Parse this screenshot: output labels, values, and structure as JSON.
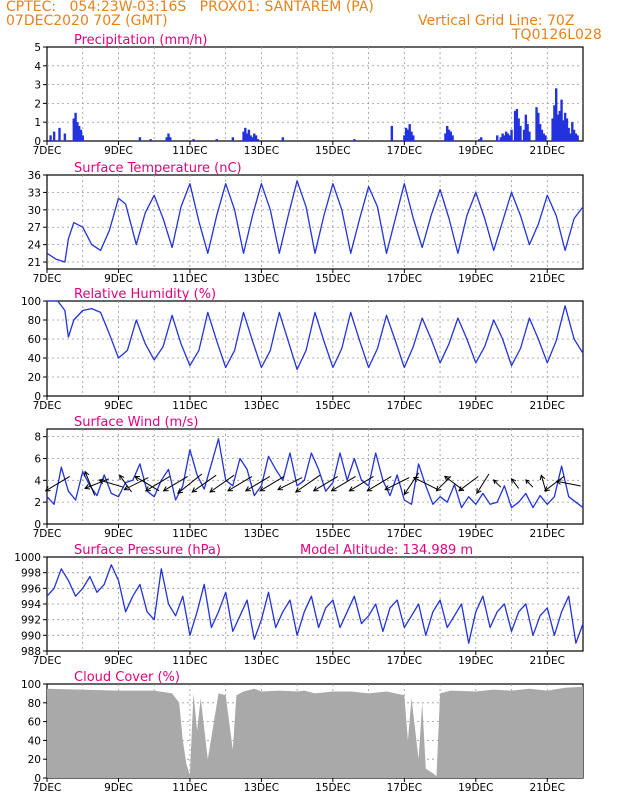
{
  "header": {
    "line1": "CPTEC:   054:23W-03:16S   PROX01: SANTAREM (PA)",
    "line2": "07DEC2020 70Z (GMT)",
    "grid_note": "Vertical Grid Line: 70Z",
    "code": "TQ0126L028"
  },
  "colors": {
    "header": "#e8821a",
    "title": "#e6007e",
    "line": "#2233dd",
    "cloud": "#a9a9a9",
    "arrow": "#000000"
  },
  "chart_data": [
    {
      "id": "precip",
      "type": "bar",
      "title": "Precipitation (mm/h)",
      "xlim": [
        7,
        22
      ],
      "ylim": [
        0,
        5
      ],
      "yticks": [
        "0",
        "1",
        "2",
        "3",
        "4",
        "5"
      ],
      "xticks": [
        "7DEC",
        "9DEC",
        "11DEC",
        "13DEC",
        "15DEC",
        "17DEC",
        "19DEC",
        "21DEC"
      ],
      "x": [
        7.1,
        7.2,
        7.35,
        7.5,
        7.75,
        7.8,
        7.85,
        7.9,
        7.95,
        8.0,
        9.6,
        9.9,
        10.35,
        10.4,
        10.45,
        11.1,
        11.75,
        12.2,
        12.5,
        12.55,
        12.6,
        12.65,
        12.7,
        12.75,
        12.8,
        12.85,
        12.9,
        13.6,
        15.6,
        16.65,
        17.0,
        17.05,
        17.1,
        17.15,
        17.2,
        17.25,
        18.15,
        18.2,
        18.25,
        18.3,
        18.35,
        19.1,
        19.15,
        19.6,
        19.7,
        19.75,
        19.8,
        19.85,
        19.9,
        19.95,
        20.0,
        20.1,
        20.15,
        20.2,
        20.25,
        20.35,
        20.4,
        20.45,
        20.5,
        20.7,
        20.75,
        20.8,
        20.85,
        20.9,
        20.95,
        21.15,
        21.2,
        21.25,
        21.3,
        21.35,
        21.4,
        21.45,
        21.5,
        21.55,
        21.6,
        21.65,
        21.7,
        21.75,
        21.8,
        21.85
      ],
      "values": [
        0.3,
        0.5,
        0.7,
        0.4,
        1.2,
        1.5,
        1.0,
        0.8,
        0.6,
        0.3,
        0.2,
        0.1,
        0.2,
        0.4,
        0.2,
        0.1,
        0.1,
        0.2,
        0.5,
        0.7,
        0.4,
        0.6,
        0.3,
        0.2,
        0.4,
        0.3,
        0.1,
        0.2,
        0.1,
        0.8,
        0.3,
        0.7,
        0.6,
        0.9,
        0.5,
        0.3,
        0.4,
        0.8,
        0.6,
        0.5,
        0.3,
        0.1,
        0.2,
        0.3,
        0.2,
        0.4,
        0.3,
        0.5,
        0.4,
        0.3,
        0.6,
        1.6,
        1.7,
        1.2,
        0.8,
        0.6,
        1.4,
        0.9,
        0.5,
        1.8,
        1.5,
        0.9,
        0.6,
        0.4,
        0.3,
        1.2,
        1.9,
        2.8,
        1.4,
        1.6,
        2.2,
        1.1,
        1.5,
        1.2,
        0.7,
        0.4,
        1.0,
        0.6,
        0.4,
        0.3
      ]
    },
    {
      "id": "temp",
      "type": "line",
      "title": "Surface Temperature (nC)",
      "xlim": [
        7,
        22
      ],
      "ylim": [
        19.8,
        36
      ],
      "yticks": [
        "21",
        "24",
        "27",
        "30",
        "33",
        "36"
      ],
      "xticks": [
        "7DEC",
        "9DEC",
        "11DEC",
        "13DEC",
        "15DEC",
        "17DEC",
        "19DEC",
        "21DEC"
      ],
      "x": [
        7.0,
        7.25,
        7.5,
        7.6,
        7.75,
        8.0,
        8.25,
        8.5,
        8.75,
        9.0,
        9.2,
        9.5,
        9.75,
        10.0,
        10.25,
        10.5,
        10.75,
        11.0,
        11.25,
        11.5,
        11.75,
        12.0,
        12.25,
        12.5,
        12.75,
        13.0,
        13.25,
        13.5,
        13.75,
        14.0,
        14.25,
        14.5,
        14.75,
        15.0,
        15.25,
        15.5,
        15.75,
        16.0,
        16.25,
        16.5,
        16.75,
        17.0,
        17.25,
        17.5,
        17.75,
        18.0,
        18.25,
        18.5,
        18.75,
        19.0,
        19.25,
        19.5,
        19.75,
        20.0,
        20.25,
        20.5,
        20.75,
        21.0,
        21.25,
        21.5,
        21.75,
        22.0
      ],
      "values": [
        22.5,
        21.5,
        21.0,
        25.0,
        27.8,
        27.0,
        24.0,
        23.0,
        26.5,
        32.0,
        31.0,
        24.0,
        29.5,
        32.5,
        28.5,
        23.5,
        30.5,
        34.5,
        28.0,
        22.5,
        29.0,
        34.5,
        30.0,
        22.5,
        29.0,
        34.5,
        30.0,
        22.5,
        29.0,
        35.0,
        30.5,
        22.5,
        29.0,
        34.5,
        30.0,
        22.5,
        28.5,
        34.0,
        30.5,
        22.5,
        28.5,
        34.5,
        28.5,
        23.5,
        29.0,
        33.5,
        28.5,
        22.5,
        29.0,
        33.0,
        28.5,
        23.0,
        28.0,
        33.0,
        29.0,
        24.0,
        27.5,
        32.5,
        29.0,
        23.0,
        28.5,
        30.5
      ]
    },
    {
      "id": "rh",
      "type": "line",
      "title": "Relative Humidity (%)",
      "xlim": [
        7,
        22
      ],
      "ylim": [
        0,
        100
      ],
      "yticks": [
        "0",
        "20",
        "40",
        "60",
        "80",
        "100"
      ],
      "xticks": [
        "7DEC",
        "9DEC",
        "11DEC",
        "13DEC",
        "15DEC",
        "17DEC",
        "19DEC",
        "21DEC"
      ],
      "x": [
        7.0,
        7.3,
        7.5,
        7.6,
        7.75,
        8.0,
        8.25,
        8.5,
        8.75,
        9.0,
        9.25,
        9.5,
        9.75,
        10.0,
        10.25,
        10.5,
        10.75,
        11.0,
        11.25,
        11.5,
        11.75,
        12.0,
        12.25,
        12.5,
        12.75,
        13.0,
        13.25,
        13.5,
        13.75,
        14.0,
        14.25,
        14.5,
        14.75,
        15.0,
        15.25,
        15.5,
        15.75,
        16.0,
        16.25,
        16.5,
        16.75,
        17.0,
        17.25,
        17.5,
        17.75,
        18.0,
        18.25,
        18.5,
        18.75,
        19.0,
        19.25,
        19.5,
        19.75,
        20.0,
        20.25,
        20.5,
        20.75,
        21.0,
        21.25,
        21.5,
        21.75,
        22.0
      ],
      "values": [
        100,
        100,
        90,
        62,
        80,
        90,
        92,
        88,
        65,
        40,
        48,
        80,
        55,
        38,
        52,
        85,
        55,
        32,
        48,
        88,
        58,
        30,
        48,
        88,
        58,
        30,
        48,
        88,
        58,
        28,
        48,
        88,
        58,
        30,
        50,
        88,
        58,
        30,
        50,
        85,
        58,
        30,
        52,
        82,
        60,
        35,
        55,
        82,
        60,
        35,
        52,
        80,
        60,
        32,
        50,
        82,
        60,
        35,
        58,
        95,
        60,
        45
      ]
    },
    {
      "id": "wind",
      "type": "line",
      "title": "Surface Wind (m/s)",
      "xlim": [
        7,
        22
      ],
      "ylim": [
        0,
        8.7
      ],
      "yticks": [
        "0",
        "2",
        "4",
        "6",
        "8"
      ],
      "xticks": [
        "7DEC",
        "9DEC",
        "11DEC",
        "13DEC",
        "15DEC",
        "17DEC",
        "19DEC",
        "21DEC"
      ],
      "x": [
        7.0,
        7.2,
        7.4,
        7.6,
        7.8,
        8.0,
        8.2,
        8.4,
        8.6,
        8.8,
        9.0,
        9.2,
        9.4,
        9.6,
        9.8,
        10.0,
        10.2,
        10.4,
        10.6,
        10.8,
        11.0,
        11.2,
        11.4,
        11.6,
        11.8,
        12.0,
        12.2,
        12.4,
        12.6,
        12.8,
        13.0,
        13.2,
        13.4,
        13.6,
        13.8,
        14.0,
        14.2,
        14.4,
        14.6,
        14.8,
        15.0,
        15.2,
        15.4,
        15.6,
        15.8,
        16.0,
        16.2,
        16.4,
        16.6,
        16.8,
        17.0,
        17.2,
        17.4,
        17.6,
        17.8,
        18.0,
        18.2,
        18.4,
        18.6,
        18.8,
        19.0,
        19.2,
        19.4,
        19.6,
        19.8,
        20.0,
        20.2,
        20.4,
        20.6,
        20.8,
        21.0,
        21.2,
        21.4,
        21.6,
        21.8,
        22.0
      ],
      "values": [
        2.5,
        1.8,
        5.2,
        3.0,
        2.2,
        4.8,
        3.5,
        2.6,
        4.5,
        2.8,
        2.5,
        3.8,
        4.0,
        5.5,
        3.0,
        2.5,
        4.0,
        5.0,
        2.2,
        3.5,
        6.8,
        4.5,
        3.2,
        5.5,
        7.8,
        4.0,
        3.5,
        6.0,
        5.0,
        2.6,
        3.5,
        6.2,
        5.0,
        4.0,
        6.5,
        3.5,
        4.0,
        6.5,
        5.0,
        3.0,
        3.8,
        6.5,
        4.0,
        6.0,
        4.0,
        3.5,
        6.5,
        4.0,
        2.6,
        4.5,
        2.2,
        1.8,
        5.5,
        3.5,
        1.8,
        2.5,
        2.0,
        3.6,
        1.5,
        2.5,
        1.8,
        2.8,
        1.8,
        2.0,
        3.5,
        1.5,
        2.0,
        2.8,
        1.5,
        2.6,
        1.8,
        2.5,
        5.3,
        2.5,
        2.0,
        1.5
      ]
    },
    {
      "id": "pres",
      "type": "line",
      "title": "Surface Pressure (hPa)",
      "annotation": "Model Altitude: 134.989 m",
      "xlim": [
        7,
        22
      ],
      "ylim": [
        988,
        1000
      ],
      "yticks": [
        "988",
        "990",
        "992",
        "994",
        "996",
        "998",
        "1000"
      ],
      "xticks": [
        "7DEC",
        "9DEC",
        "11DEC",
        "13DEC",
        "15DEC",
        "17DEC",
        "19DEC",
        "21DEC"
      ],
      "x": [
        7.0,
        7.2,
        7.4,
        7.6,
        7.8,
        8.0,
        8.2,
        8.4,
        8.6,
        8.8,
        9.0,
        9.2,
        9.4,
        9.6,
        9.8,
        10.0,
        10.2,
        10.4,
        10.6,
        10.8,
        11.0,
        11.2,
        11.4,
        11.6,
        11.8,
        12.0,
        12.2,
        12.4,
        12.6,
        12.8,
        13.0,
        13.2,
        13.4,
        13.6,
        13.8,
        14.0,
        14.2,
        14.4,
        14.6,
        14.8,
        15.0,
        15.2,
        15.4,
        15.6,
        15.8,
        16.0,
        16.2,
        16.4,
        16.6,
        16.8,
        17.0,
        17.2,
        17.4,
        17.6,
        17.8,
        18.0,
        18.2,
        18.4,
        18.6,
        18.8,
        19.0,
        19.2,
        19.4,
        19.6,
        19.8,
        20.0,
        20.2,
        20.4,
        20.6,
        20.8,
        21.0,
        21.2,
        21.4,
        21.6,
        21.8,
        22.0
      ],
      "values": [
        995.0,
        996.0,
        998.5,
        997.0,
        995.0,
        996.0,
        997.5,
        995.5,
        996.5,
        999.0,
        997.0,
        993.0,
        995.0,
        996.5,
        993.0,
        992.0,
        998.5,
        994.0,
        992.5,
        995.0,
        990.0,
        993.0,
        996.5,
        991.0,
        993.0,
        995.5,
        990.5,
        992.5,
        994.5,
        989.5,
        992.0,
        995.5,
        991.0,
        993.0,
        994.5,
        990.0,
        993.0,
        995.0,
        991.0,
        993.5,
        994.5,
        991.0,
        993.0,
        995.0,
        991.5,
        992.5,
        994.0,
        990.5,
        993.5,
        994.5,
        991.0,
        992.5,
        994.0,
        990.0,
        993.0,
        994.5,
        991.0,
        992.5,
        994.0,
        989.0,
        993.0,
        995.0,
        991.0,
        993.0,
        994.0,
        990.5,
        993.0,
        994.0,
        990.0,
        992.5,
        993.5,
        990.0,
        993.0,
        995.0,
        989.0,
        991.5
      ]
    },
    {
      "id": "cloud",
      "type": "area",
      "title": "Cloud Cover (%)",
      "xlim": [
        7,
        22
      ],
      "ylim": [
        0,
        100
      ],
      "yticks": [
        "0",
        "20",
        "40",
        "60",
        "80",
        "100"
      ],
      "xticks": [
        "7DEC",
        "9DEC",
        "11DEC",
        "13DEC",
        "15DEC",
        "17DEC",
        "19DEC",
        "21DEC"
      ],
      "x": [
        7.0,
        9.0,
        10.0,
        10.5,
        10.7,
        10.8,
        10.9,
        11.0,
        11.1,
        11.2,
        11.3,
        11.5,
        11.8,
        12.0,
        12.2,
        12.3,
        12.5,
        12.8,
        13.0,
        13.5,
        14.0,
        14.2,
        14.5,
        15.0,
        15.5,
        16.0,
        16.5,
        17.0,
        17.1,
        17.2,
        17.4,
        17.5,
        17.6,
        17.8,
        17.9,
        18.0,
        18.3,
        19.0,
        19.5,
        20.0,
        20.5,
        21.0,
        21.5,
        22.0
      ],
      "values": [
        95,
        93,
        93,
        90,
        80,
        40,
        15,
        3,
        90,
        50,
        85,
        20,
        90,
        88,
        30,
        88,
        92,
        95,
        92,
        93,
        92,
        93,
        90,
        92,
        92,
        90,
        92,
        88,
        40,
        85,
        20,
        80,
        10,
        5,
        2,
        90,
        93,
        92,
        94,
        93,
        95,
        93,
        96,
        97
      ]
    }
  ],
  "wind_arrows": [
    {
      "x": 7.3,
      "u": -1.0,
      "v": -0.6
    },
    {
      "x": 8.2,
      "u": -0.4,
      "v": 1.0
    },
    {
      "x": 8.4,
      "u": -1.0,
      "v": -0.4
    },
    {
      "x": 8.8,
      "u": -1.0,
      "v": 0.3
    },
    {
      "x": 9.2,
      "u": -0.5,
      "v": 0.7
    },
    {
      "x": 9.5,
      "u": -1.0,
      "v": -0.5
    },
    {
      "x": 9.8,
      "u": -1.0,
      "v": 0.6
    },
    {
      "x": 10.1,
      "u": -1.0,
      "v": -0.6
    },
    {
      "x": 10.6,
      "u": -1.0,
      "v": -0.6
    },
    {
      "x": 11.0,
      "u": -1.0,
      "v": -0.8
    },
    {
      "x": 11.4,
      "u": -1.0,
      "v": -0.7
    },
    {
      "x": 11.9,
      "u": -1.0,
      "v": -0.7
    },
    {
      "x": 12.4,
      "u": -1.0,
      "v": -0.6
    },
    {
      "x": 12.9,
      "u": -1.0,
      "v": -0.6
    },
    {
      "x": 13.3,
      "u": -1.0,
      "v": -0.6
    },
    {
      "x": 13.8,
      "u": -1.0,
      "v": -0.5
    },
    {
      "x": 14.3,
      "u": -1.0,
      "v": -0.7
    },
    {
      "x": 14.8,
      "u": -1.0,
      "v": -0.6
    },
    {
      "x": 15.3,
      "u": -1.0,
      "v": -0.6
    },
    {
      "x": 15.8,
      "u": -1.0,
      "v": -0.6
    },
    {
      "x": 16.3,
      "u": -1.0,
      "v": -0.6
    },
    {
      "x": 16.8,
      "u": -1.0,
      "v": -0.5
    },
    {
      "x": 17.2,
      "u": -0.6,
      "v": -0.9
    },
    {
      "x": 17.6,
      "u": -1.0,
      "v": 0.5
    },
    {
      "x": 18.1,
      "u": -0.6,
      "v": -0.6
    },
    {
      "x": 18.4,
      "u": -0.8,
      "v": 0.6
    },
    {
      "x": 18.8,
      "u": -0.8,
      "v": -0.6
    },
    {
      "x": 19.2,
      "u": -0.5,
      "v": -0.8
    },
    {
      "x": 19.6,
      "u": -0.3,
      "v": 0.3
    },
    {
      "x": 20.1,
      "u": -0.3,
      "v": 0.4
    },
    {
      "x": 20.5,
      "u": -0.3,
      "v": 0.3
    },
    {
      "x": 20.9,
      "u": -0.2,
      "v": 0.7
    },
    {
      "x": 21.2,
      "u": -0.8,
      "v": -0.6
    },
    {
      "x": 21.6,
      "u": -1.0,
      "v": 0.2
    }
  ]
}
